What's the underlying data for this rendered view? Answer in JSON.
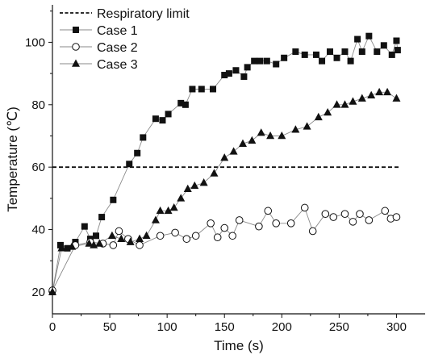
{
  "chart_data": {
    "type": "line",
    "xlabel": "Time (s)",
    "ylabel": "Temperature (℃)",
    "xlim": [
      0,
      325
    ],
    "ylim": [
      13,
      112
    ],
    "xticks": [
      0,
      50,
      100,
      150,
      200,
      250,
      300
    ],
    "yticks": [
      20,
      40,
      60,
      80,
      100
    ],
    "grid": false,
    "legend_position": "top-left",
    "reference_lines": [
      {
        "name": "Respiratory limit",
        "y": 60,
        "style": "dashed",
        "color": "#111111"
      }
    ],
    "series": [
      {
        "name": "Case 1",
        "marker": "square",
        "color": "#111111",
        "points": [
          [
            0,
            20
          ],
          [
            7,
            35
          ],
          [
            13,
            34
          ],
          [
            20,
            36
          ],
          [
            28,
            41
          ],
          [
            33,
            37
          ],
          [
            38,
            38
          ],
          [
            43,
            44
          ],
          [
            53,
            49.5
          ],
          [
            67,
            61
          ],
          [
            74,
            64.5
          ],
          [
            79,
            69.5
          ],
          [
            90,
            75.5
          ],
          [
            96,
            75
          ],
          [
            101,
            77
          ],
          [
            112,
            80.5
          ],
          [
            116,
            80
          ],
          [
            122,
            85
          ],
          [
            130,
            85
          ],
          [
            140,
            85
          ],
          [
            150,
            89.5
          ],
          [
            154,
            90
          ],
          [
            160,
            91
          ],
          [
            167,
            89
          ],
          [
            170,
            92
          ],
          [
            176,
            94
          ],
          [
            181,
            94
          ],
          [
            187,
            94
          ],
          [
            195,
            93
          ],
          [
            202,
            95
          ],
          [
            212,
            97
          ],
          [
            220,
            96
          ],
          [
            230,
            96
          ],
          [
            235,
            94
          ],
          [
            242,
            97
          ],
          [
            248,
            95
          ],
          [
            255,
            97
          ],
          [
            260,
            94
          ],
          [
            266,
            101
          ],
          [
            270,
            97
          ],
          [
            276,
            102
          ],
          [
            283,
            97
          ],
          [
            289,
            99
          ],
          [
            296,
            96
          ],
          [
            300,
            100.5
          ],
          [
            301,
            97.5
          ]
        ]
      },
      {
        "name": "Case 2",
        "marker": "circle",
        "color": "#111111",
        "points": [
          [
            0,
            20.5
          ],
          [
            20,
            35
          ],
          [
            33,
            36
          ],
          [
            44,
            35.5
          ],
          [
            53,
            35
          ],
          [
            58,
            39.5
          ],
          [
            66,
            37
          ],
          [
            76,
            35
          ],
          [
            94,
            38
          ],
          [
            107,
            39
          ],
          [
            117,
            37
          ],
          [
            125,
            38
          ],
          [
            138,
            42
          ],
          [
            144,
            37.5
          ],
          [
            150,
            40.5
          ],
          [
            157,
            38
          ],
          [
            163,
            43
          ],
          [
            180,
            41
          ],
          [
            188,
            46
          ],
          [
            195,
            42
          ],
          [
            208,
            42
          ],
          [
            220,
            47
          ],
          [
            227,
            39.5
          ],
          [
            238,
            45
          ],
          [
            245,
            44
          ],
          [
            255,
            45
          ],
          [
            262,
            42.5
          ],
          [
            268,
            45
          ],
          [
            276,
            43
          ],
          [
            290,
            46
          ],
          [
            295,
            43.5
          ],
          [
            300,
            44
          ]
        ]
      },
      {
        "name": "Case 3",
        "marker": "triangle",
        "color": "#111111",
        "points": [
          [
            0,
            20
          ],
          [
            8,
            34
          ],
          [
            17,
            34.5
          ],
          [
            32,
            35.5
          ],
          [
            36,
            35
          ],
          [
            41,
            35.5
          ],
          [
            52,
            38
          ],
          [
            60,
            37
          ],
          [
            68,
            36
          ],
          [
            76,
            37
          ],
          [
            82,
            38
          ],
          [
            90,
            43
          ],
          [
            94,
            46
          ],
          [
            101,
            46
          ],
          [
            106,
            47
          ],
          [
            112,
            50
          ],
          [
            118,
            53
          ],
          [
            124,
            54
          ],
          [
            132,
            55
          ],
          [
            141,
            58
          ],
          [
            150,
            63
          ],
          [
            158,
            65
          ],
          [
            166,
            67.5
          ],
          [
            174,
            68.5
          ],
          [
            182,
            71
          ],
          [
            190,
            70
          ],
          [
            200,
            70
          ],
          [
            212,
            72
          ],
          [
            222,
            73
          ],
          [
            232,
            76
          ],
          [
            240,
            77.5
          ],
          [
            248,
            80
          ],
          [
            255,
            80
          ],
          [
            262,
            81
          ],
          [
            270,
            82
          ],
          [
            278,
            83
          ],
          [
            285,
            84
          ],
          [
            292,
            84
          ],
          [
            300,
            82
          ]
        ]
      }
    ]
  }
}
